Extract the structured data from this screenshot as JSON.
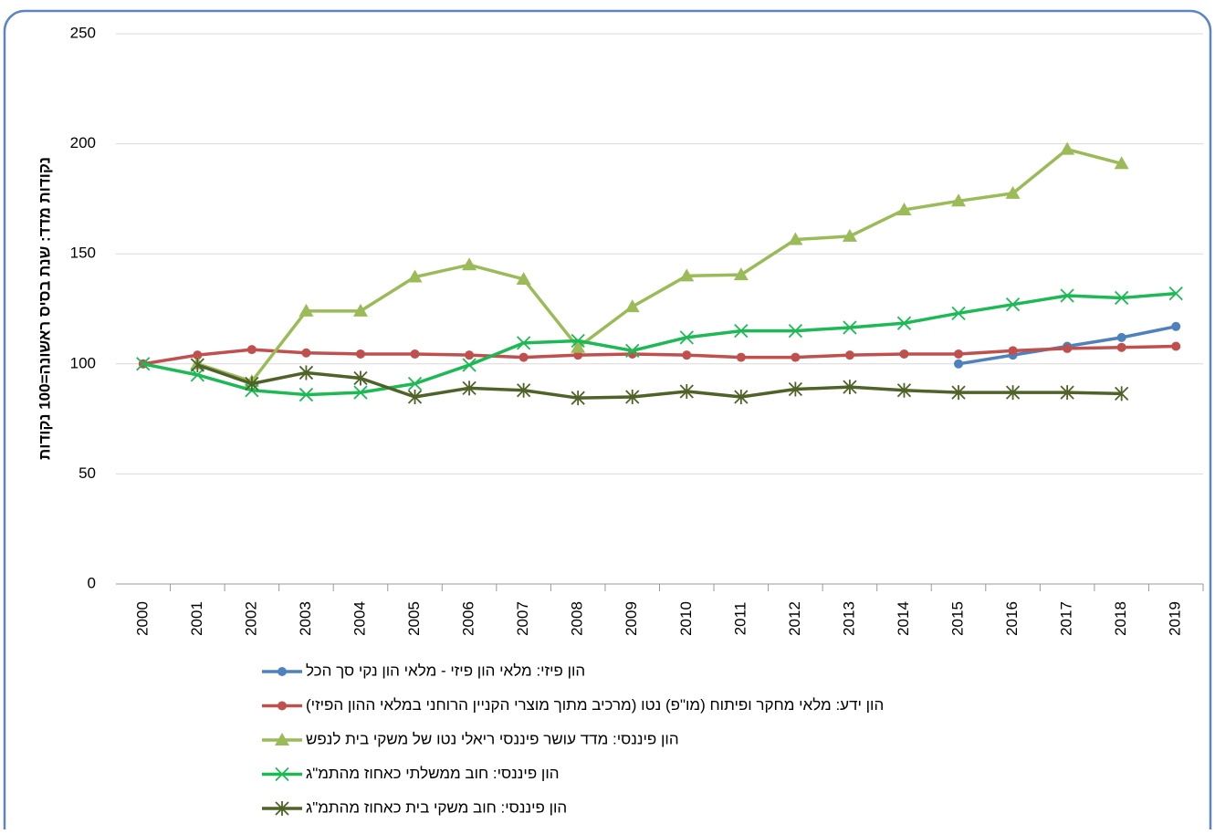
{
  "chart_data": {
    "type": "line",
    "y_label": "נקודות מדד: שנת בסיס ראשונה=100 נקודות",
    "categories": [
      "2000",
      "2001",
      "2002",
      "2003",
      "2004",
      "2005",
      "2006",
      "2007",
      "2008",
      "2009",
      "2010",
      "2011",
      "2012",
      "2013",
      "2014",
      "2015",
      "2016",
      "2017",
      "2018",
      "2019"
    ],
    "ylim": [
      0,
      250
    ],
    "yticks": [
      0,
      50,
      100,
      150,
      200,
      250
    ],
    "grid": true,
    "legend": "bottom",
    "series": [
      {
        "name": "הון פיזי: מלאי הון פיזי - מלאי הון נקי סך הכל",
        "color": "#4f81bd",
        "marker": "circle",
        "values": [
          null,
          null,
          null,
          null,
          null,
          null,
          null,
          null,
          null,
          null,
          null,
          null,
          null,
          null,
          null,
          100,
          104,
          108,
          112,
          117
        ]
      },
      {
        "name": "הון ידע: מלאי מחקר ופיתוח (מו\"פ) נטו (מרכיב מתוך מוצרי הקניין הרוחני במלאי ההון הפיזי)",
        "color": "#c0504d",
        "marker": "circle",
        "values": [
          100,
          104,
          106.5,
          105,
          104.5,
          104.5,
          104,
          103,
          104,
          104.5,
          104,
          103,
          103,
          104,
          104.5,
          104.5,
          106,
          107,
          107.5,
          108
        ]
      },
      {
        "name": "הון פיננסי: מדד עושר פיננסי ריאלי נטו של משקי בית לנפש",
        "color": "#9bbb59",
        "marker": "triangle",
        "values": [
          null,
          100,
          92,
          124,
          124,
          139.5,
          145,
          138.5,
          107.5,
          126,
          140,
          140.5,
          156.5,
          158,
          170,
          174,
          177.5,
          197.5,
          191,
          null
        ]
      },
      {
        "name": "הון פיננסי: חוב ממשלתי כאחוז מהתמ\"ג",
        "color": "#1db954",
        "marker": "x",
        "values": [
          100,
          95,
          88,
          86,
          87,
          91,
          99.5,
          109.5,
          110.5,
          106,
          112,
          115,
          115,
          116.5,
          118.5,
          123,
          127,
          131,
          130,
          132
        ]
      },
      {
        "name": "הון פיננסי: חוב משקי בית כאחוז מהתמ\"ג",
        "color": "#4f6228",
        "marker": "star",
        "values": [
          null,
          99.5,
          91,
          96,
          93.5,
          85,
          89,
          88,
          84.5,
          85,
          87.5,
          85,
          88.5,
          89.5,
          88,
          87,
          87,
          87,
          86.5,
          null
        ]
      }
    ]
  }
}
